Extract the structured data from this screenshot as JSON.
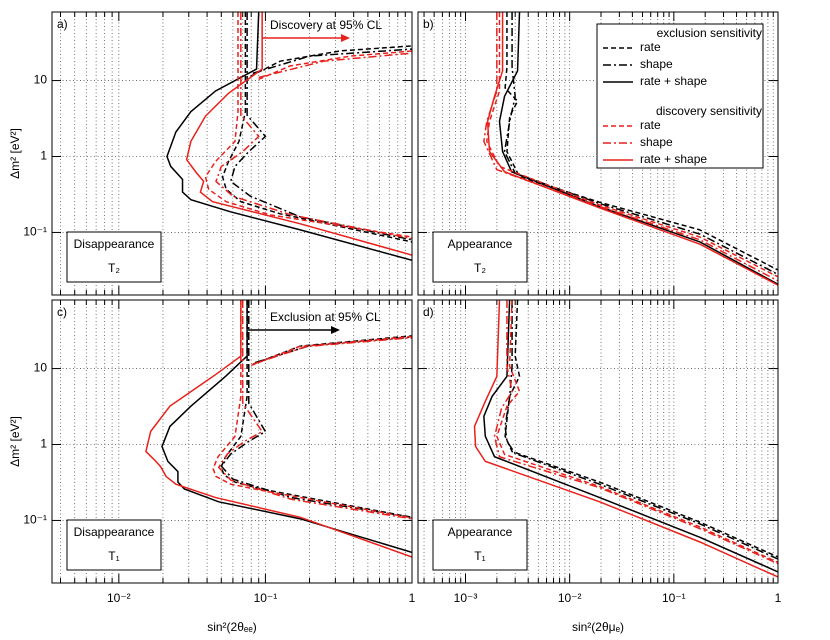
{
  "chart_data": [
    {
      "type": "line",
      "panel_label": "a)",
      "box_title": "Disappearance",
      "box_subtitle": "T₂",
      "y_label": "Δm² [eV²]",
      "xscale": "log",
      "yscale": "log",
      "xlim": [
        0.0035,
        1
      ],
      "ylim": [
        0.015,
        80
      ],
      "xticks": [
        0.01,
        0.1,
        1
      ],
      "xtick_labels": false,
      "xminor": [
        0.004,
        0.005,
        0.006,
        0.007,
        0.008,
        0.009,
        0.02,
        0.03,
        0.04,
        0.05,
        0.06,
        0.07,
        0.08,
        0.09,
        0.2,
        0.3,
        0.4,
        0.5,
        0.6,
        0.7,
        0.8,
        0.9
      ],
      "yticks": [
        {
          "value": 0.1,
          "label": "10⁻¹"
        },
        1,
        10
      ],
      "grid": true,
      "annotation": {
        "text": "Discovery at 95% CL",
        "color": "#e8211c"
      },
      "series": [
        {
          "color": "#000000",
          "dash": "dashed",
          "x": [
            0.073,
            0.073,
            0.066,
            0.056,
            0.051,
            0.054,
            0.068,
            0.126,
            1,
            null,
            0.079,
            0.126,
            0.324,
            1
          ],
          "y": [
            80,
            3.9,
            1.58,
            0.86,
            0.54,
            0.37,
            0.254,
            0.176,
            0.075,
            null,
            11.4,
            18,
            24.6,
            28.6
          ]
        },
        {
          "color": "#000000",
          "dash": "dashdot",
          "x": [
            0.075,
            0.075,
            0.1,
            0.077,
            0.062,
            0.058,
            0.079,
            0.173,
            1,
            null,
            0.082,
            0.2,
            1
          ],
          "y": [
            80,
            3.5,
            1.84,
            1.16,
            0.74,
            0.47,
            0.3,
            0.16,
            0.08,
            null,
            12.5,
            21,
            26
          ]
        },
        {
          "color": "#000000",
          "dash": "solid",
          "x": [
            0.09,
            0.087,
            0.0457,
            0.031,
            0.0245,
            0.0213,
            0.0226,
            0.0272,
            0.0272,
            0.031,
            0.0578,
            0.173,
            1
          ],
          "y": [
            80,
            14.2,
            7.3,
            3.9,
            2.1,
            1.0,
            0.74,
            0.5,
            0.34,
            0.27,
            0.187,
            0.108,
            0.043
          ]
        },
        {
          "color": "#e8211c",
          "dash": "dashed",
          "x": [
            0.065,
            0.065,
            0.062,
            0.0457,
            0.039,
            0.041,
            0.054,
            0.108,
            1,
            null,
            0.09,
            0.148,
            0.38,
            1
          ],
          "y": [
            80,
            3.9,
            1.58,
            0.86,
            0.54,
            0.37,
            0.254,
            0.17,
            0.087,
            null,
            10.4,
            15.6,
            21,
            24.5
          ]
        },
        {
          "color": "#e8211c",
          "dash": "dashdot",
          "x": [
            0.068,
            0.068,
            0.09,
            0.07,
            0.05,
            0.046,
            0.06,
            0.15,
            1,
            null,
            0.09,
            0.25,
            1
          ],
          "y": [
            80,
            3.5,
            1.84,
            1.16,
            0.74,
            0.47,
            0.3,
            0.17,
            0.083,
            null,
            11,
            18,
            23
          ]
        },
        {
          "color": "#e8211c",
          "dash": "solid",
          "x": [
            0.095,
            0.095,
            0.056,
            0.039,
            0.031,
            0.029,
            0.0334,
            0.0379,
            0.036,
            0.0436,
            0.173,
            1
          ],
          "y": [
            80,
            14.2,
            6.8,
            3.4,
            1.58,
            0.91,
            0.63,
            0.47,
            0.34,
            0.254,
            0.13,
            0.0503
          ]
        }
      ]
    },
    {
      "type": "line",
      "panel_label": "b)",
      "box_title": "Appearance",
      "box_subtitle": "T₂",
      "xscale": "log",
      "yscale": "log",
      "xlim": [
        0.00035,
        1
      ],
      "ylim": [
        0.015,
        80
      ],
      "xticks": [
        0.001,
        0.01,
        0.1,
        1
      ],
      "xtick_labels": false,
      "xminor": [
        0.0004,
        0.0005,
        0.0006,
        0.0007,
        0.0008,
        0.0009,
        0.002,
        0.003,
        0.004,
        0.005,
        0.006,
        0.007,
        0.008,
        0.009,
        0.02,
        0.03,
        0.04,
        0.05,
        0.06,
        0.07,
        0.08,
        0.09,
        0.2,
        0.3,
        0.4,
        0.5,
        0.6,
        0.7,
        0.8,
        0.9
      ],
      "yticks": [
        0.1,
        1,
        10
      ],
      "ytick_labels": false,
      "grid": true,
      "legend": true,
      "legend_groups": [
        "exclusion sensitivity",
        "discovery sensitivity"
      ],
      "series": [
        {
          "name": "rate",
          "group": 0,
          "color": "#000000",
          "dash": "dashed",
          "x": [
            0.0025,
            0.0025,
            0.0024,
            0.00316,
            0.00266,
            0.0025,
            0.0033,
            0.0194,
            0.178,
            1
          ],
          "y": [
            80,
            15,
            8,
            5.35,
            3.4,
            1.16,
            0.54,
            0.25,
            0.108,
            0.032
          ]
        },
        {
          "name": "shape",
          "group": 0,
          "color": "#000000",
          "dash": "dashdot",
          "x": [
            0.0028,
            0.0028,
            0.003,
            0.00266,
            0.00237,
            0.003,
            0.0194,
            0.178,
            1
          ],
          "y": [
            80,
            15,
            6.2,
            2.9,
            1.16,
            0.6,
            0.24,
            0.095,
            0.028
          ]
        },
        {
          "name": "rate + shape",
          "group": 0,
          "color": "#000000",
          "dash": "solid",
          "x": [
            0.0033,
            0.00316,
            0.00237,
            0.00212,
            0.00227,
            0.00277,
            0.0194,
            0.178,
            1
          ],
          "y": [
            80,
            13.4,
            6.2,
            2.9,
            1.16,
            0.63,
            0.218,
            0.075,
            0.0208
          ]
        },
        {
          "name": "rate",
          "group": 1,
          "color": "#e8211c",
          "dash": "dashed",
          "x": [
            0.00212,
            0.00212,
            0.0017,
            0.0016,
            0.00212,
            0.0194,
            0.178,
            1
          ],
          "y": [
            80,
            7.3,
            2.9,
            1.58,
            0.74,
            0.23,
            0.087,
            0.026
          ]
        },
        {
          "name": "shape",
          "group": 1,
          "color": "#e8211c",
          "dash": "dashdot",
          "x": [
            0.002,
            0.002,
            0.0016,
            0.0015,
            0.002,
            0.0194,
            0.178,
            1
          ],
          "y": [
            80,
            7.3,
            2.9,
            1.58,
            0.67,
            0.22,
            0.08,
            0.023
          ]
        },
        {
          "name": "rate + shape",
          "group": 1,
          "color": "#e8211c",
          "dash": "solid",
          "x": [
            0.00227,
            0.00227,
            0.0019,
            0.00163,
            0.0017,
            0.00237,
            0.0194,
            0.178,
            1
          ],
          "y": [
            80,
            13.4,
            6.2,
            2.9,
            1.16,
            0.63,
            0.21,
            0.07,
            0.0202
          ]
        }
      ]
    },
    {
      "type": "line",
      "panel_label": "c)",
      "box_title": "Disappearance",
      "box_subtitle": "T₁",
      "x_label": "sin²(2θₑₑ)",
      "y_label": "Δm² [eV²]",
      "xscale": "log",
      "yscale": "log",
      "xlim": [
        0.0035,
        1
      ],
      "ylim": [
        0.015,
        80
      ],
      "xticks": [
        {
          "value": 0.01,
          "label": "10⁻²"
        },
        {
          "value": 0.1,
          "label": "10⁻¹"
        },
        1
      ],
      "xminor": [
        0.004,
        0.005,
        0.006,
        0.007,
        0.008,
        0.009,
        0.02,
        0.03,
        0.04,
        0.05,
        0.06,
        0.07,
        0.08,
        0.09,
        0.2,
        0.3,
        0.4,
        0.5,
        0.6,
        0.7,
        0.8,
        0.9
      ],
      "yticks": [
        {
          "value": 0.1,
          "label": "10⁻¹"
        },
        1,
        10
      ],
      "grid": true,
      "annotation": {
        "text": "Exclusion at 95% CL",
        "color": "#000000"
      },
      "series": [
        {
          "color": "#000000",
          "dash": "dashed",
          "x": [
            0.075,
            0.075,
            0.068,
            0.0535,
            0.05,
            0.052,
            0.062,
            0.093,
            1,
            null,
            0.082,
            0.173,
            1
          ],
          "y": [
            80,
            4.3,
            1.28,
            0.69,
            0.51,
            0.4,
            0.32,
            0.26,
            0.11,
            null,
            11.4,
            19.8,
            27
          ]
        },
        {
          "color": "#000000",
          "dash": "dashdot",
          "x": [
            0.077,
            0.077,
            0.1,
            0.077,
            0.058,
            0.05,
            0.06,
            0.15,
            1,
            null,
            0.085,
            0.2,
            1
          ],
          "y": [
            80,
            3.5,
            1.48,
            1.1,
            0.75,
            0.52,
            0.35,
            0.2,
            0.11,
            null,
            12,
            20,
            26
          ]
        },
        {
          "color": "#000000",
          "dash": "solid",
          "x": [
            0.075,
            0.075,
            0.0535,
            0.031,
            0.0223,
            0.0197,
            0.0216,
            0.0253,
            0.0253,
            0.028,
            0.048,
            0.173,
            1
          ],
          "y": [
            80,
            14.6,
            7.9,
            3.2,
            1.73,
            0.94,
            0.6,
            0.44,
            0.32,
            0.26,
            0.176,
            0.105,
            0.038
          ]
        },
        {
          "color": "#e8211c",
          "dash": "dashed",
          "x": [
            0.068,
            0.068,
            0.062,
            0.0475,
            0.044,
            0.046,
            0.058,
            0.093,
            1,
            null,
            0.08,
            0.17,
            1
          ],
          "y": [
            80,
            4.3,
            1.28,
            0.69,
            0.48,
            0.38,
            0.3,
            0.25,
            0.108,
            null,
            11,
            19.5,
            26.5
          ]
        },
        {
          "color": "#e8211c",
          "dash": "dashdot",
          "x": [
            0.07,
            0.07,
            0.095,
            0.072,
            0.055,
            0.048,
            0.058,
            0.15,
            1,
            null,
            0.083,
            0.19,
            1
          ],
          "y": [
            80,
            3.5,
            1.48,
            1.1,
            0.75,
            0.5,
            0.34,
            0.19,
            0.105,
            null,
            11.5,
            19.5,
            25.5
          ]
        },
        {
          "color": "#e8211c",
          "dash": "solid",
          "x": [
            0.068,
            0.068,
            0.046,
            0.0223,
            0.0165,
            0.0153,
            0.0179,
            0.0193,
            0.021,
            0.0245,
            0.0457,
            0.173,
            1
          ],
          "y": [
            80,
            14.6,
            8.4,
            3.2,
            1.49,
            0.81,
            0.6,
            0.51,
            0.38,
            0.3,
            0.2,
            0.11,
            0.033
          ]
        }
      ]
    },
    {
      "type": "line",
      "panel_label": "d)",
      "box_title": "Appearance",
      "box_subtitle": "T₁",
      "x_label": "sin²(2θμₑ)",
      "xscale": "log",
      "yscale": "log",
      "xlim": [
        0.00035,
        1
      ],
      "ylim": [
        0.015,
        80
      ],
      "xticks": [
        {
          "value": 0.001,
          "label": "10⁻³"
        },
        {
          "value": 0.01,
          "label": "10⁻²"
        },
        {
          "value": 0.1,
          "label": "10⁻¹"
        },
        1
      ],
      "xminor": [
        0.0004,
        0.0005,
        0.0006,
        0.0007,
        0.0008,
        0.0009,
        0.002,
        0.003,
        0.004,
        0.005,
        0.006,
        0.007,
        0.008,
        0.009,
        0.02,
        0.03,
        0.04,
        0.05,
        0.06,
        0.07,
        0.08,
        0.09,
        0.2,
        0.3,
        0.4,
        0.5,
        0.6,
        0.7,
        0.8,
        0.9
      ],
      "yticks": [
        0.1,
        1,
        10
      ],
      "ytick_labels": false,
      "grid": true,
      "series": [
        {
          "color": "#000000",
          "dash": "dashed",
          "x": [
            0.00316,
            0.003,
            0.0033,
            0.00265,
            0.0024,
            0.0028,
            0.0194,
            0.178,
            1
          ],
          "y": [
            80,
            14.6,
            7.9,
            4.3,
            1.28,
            0.81,
            0.32,
            0.095,
            0.033
          ]
        },
        {
          "color": "#000000",
          "dash": "dashdot",
          "x": [
            0.0028,
            0.0028,
            0.00266,
            0.0024,
            0.0025,
            0.003,
            0.0194,
            0.178,
            1
          ],
          "y": [
            80,
            10.8,
            4.3,
            1.73,
            1.1,
            0.76,
            0.3,
            0.09,
            0.031
          ]
        },
        {
          "color": "#000000",
          "dash": "solid",
          "x": [
            0.00265,
            0.0025,
            0.0018,
            0.0015,
            0.00155,
            0.0019,
            0.0194,
            0.178,
            1
          ],
          "y": [
            80,
            7.9,
            4.3,
            2.35,
            1.28,
            0.69,
            0.2,
            0.06,
            0.021
          ]
        },
        {
          "color": "#e8211c",
          "dash": "dashed",
          "x": [
            0.0028,
            0.00265,
            0.0033,
            0.0025,
            0.002,
            0.00237,
            0.0194,
            0.178,
            1
          ],
          "y": [
            80,
            10.8,
            5.0,
            3.2,
            1.28,
            0.74,
            0.28,
            0.082,
            0.028
          ]
        },
        {
          "color": "#e8211c",
          "dash": "dashdot",
          "x": [
            0.0025,
            0.0025,
            0.0028,
            0.00222,
            0.0019,
            0.00212,
            0.0194,
            0.178,
            1
          ],
          "y": [
            80,
            10.8,
            5.0,
            3.0,
            1.28,
            0.69,
            0.27,
            0.078,
            0.027
          ]
        },
        {
          "color": "#e8211c",
          "dash": "solid",
          "x": [
            0.00212,
            0.002,
            0.00155,
            0.00122,
            0.00125,
            0.00155,
            0.0194,
            0.178,
            1
          ],
          "y": [
            80,
            7.9,
            3.7,
            1.73,
            0.94,
            0.6,
            0.176,
            0.052,
            0.018
          ]
        }
      ]
    }
  ]
}
